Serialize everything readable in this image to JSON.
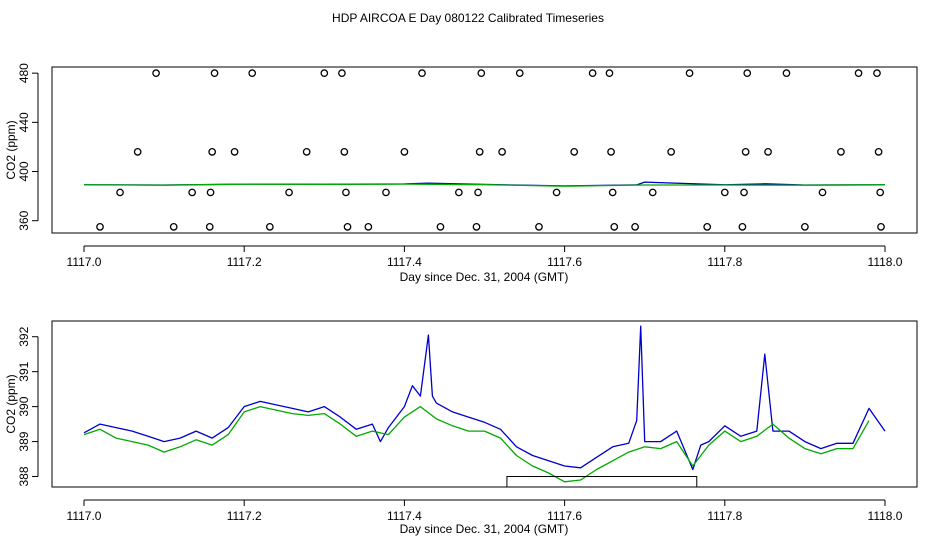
{
  "title": "HDP AIRCOA E  Day 080122  Calibrated Timeseries",
  "chart_data": [
    {
      "type": "scatter",
      "xlabel": "Day since Dec. 31, 2004 (GMT)",
      "ylabel": "CO2 (ppm)",
      "xlim": [
        1117.0,
        1118.0
      ],
      "ylim": [
        350,
        485
      ],
      "xticks": [
        "1117.0",
        "1117.2",
        "1117.4",
        "1117.6",
        "1117.8",
        "1118.0"
      ],
      "yticks": [
        "360",
        "400",
        "440",
        "480"
      ],
      "grid": false,
      "series": [
        {
          "kind": "points",
          "color": "#000000",
          "points": [
            [
              1117.02,
              355
            ],
            [
              1117.045,
              383
            ],
            [
              1117.067,
              416
            ],
            [
              1117.09,
              480
            ],
            [
              1117.112,
              355
            ],
            [
              1117.135,
              383
            ],
            [
              1117.157,
              355
            ],
            [
              1117.158,
              383
            ],
            [
              1117.16,
              416
            ],
            [
              1117.163,
              480
            ],
            [
              1117.188,
              416
            ],
            [
              1117.21,
              480
            ],
            [
              1117.232,
              355
            ],
            [
              1117.256,
              383
            ],
            [
              1117.278,
              416
            ],
            [
              1117.3,
              480
            ],
            [
              1117.322,
              480
            ],
            [
              1117.325,
              416
            ],
            [
              1117.327,
              383
            ],
            [
              1117.329,
              355
            ],
            [
              1117.355,
              355
            ],
            [
              1117.377,
              383
            ],
            [
              1117.4,
              416
            ],
            [
              1117.422,
              480
            ],
            [
              1117.445,
              355
            ],
            [
              1117.468,
              383
            ],
            [
              1117.49,
              355
            ],
            [
              1117.492,
              383
            ],
            [
              1117.494,
              416
            ],
            [
              1117.496,
              480
            ],
            [
              1117.522,
              416
            ],
            [
              1117.544,
              480
            ],
            [
              1117.568,
              355
            ],
            [
              1117.59,
              383
            ],
            [
              1117.612,
              416
            ],
            [
              1117.635,
              480
            ],
            [
              1117.656,
              480
            ],
            [
              1117.658,
              416
            ],
            [
              1117.66,
              383
            ],
            [
              1117.662,
              355
            ],
            [
              1117.688,
              355
            ],
            [
              1117.71,
              383
            ],
            [
              1117.733,
              416
            ],
            [
              1117.756,
              480
            ],
            [
              1117.778,
              355
            ],
            [
              1117.8,
              383
            ],
            [
              1117.822,
              355
            ],
            [
              1117.824,
              383
            ],
            [
              1117.826,
              416
            ],
            [
              1117.828,
              480
            ],
            [
              1117.854,
              416
            ],
            [
              1117.877,
              480
            ],
            [
              1117.9,
              355
            ],
            [
              1117.922,
              383
            ],
            [
              1117.945,
              416
            ],
            [
              1117.967,
              480
            ],
            [
              1117.99,
              480
            ],
            [
              1117.992,
              416
            ],
            [
              1117.994,
              383
            ],
            [
              1117.995,
              355
            ]
          ]
        },
        {
          "kind": "line",
          "color": "#0000cc",
          "x": [
            1117.0,
            1117.1,
            1117.2,
            1117.3,
            1117.4,
            1117.43,
            1117.5,
            1117.6,
            1117.69,
            1117.7,
            1117.8,
            1117.85,
            1117.9,
            1118.0
          ],
          "y": [
            389.2,
            389.0,
            389.8,
            389.6,
            389.9,
            390.6,
            389.5,
            388.3,
            389.1,
            391.4,
            389.2,
            390.0,
            389.0,
            389.2
          ]
        },
        {
          "kind": "line",
          "color": "#00aa00",
          "x": [
            1117.0,
            1117.1,
            1117.2,
            1117.3,
            1117.4,
            1117.5,
            1117.6,
            1117.7,
            1117.8,
            1117.9,
            1118.0
          ],
          "y": [
            389.2,
            388.9,
            389.7,
            389.5,
            389.8,
            389.3,
            388.1,
            389.0,
            389.0,
            388.9,
            389.2
          ]
        }
      ]
    },
    {
      "type": "line",
      "xlabel": "Day since Dec. 31, 2004 (GMT)",
      "ylabel": "CO2 (ppm)",
      "xlim": [
        1117.0,
        1118.0
      ],
      "ylim": [
        387.7,
        392.45
      ],
      "xticks": [
        "1117.0",
        "1117.2",
        "1117.4",
        "1117.6",
        "1117.8",
        "1118.0"
      ],
      "yticks": [
        "388",
        "389",
        "390",
        "391",
        "392"
      ],
      "grid": false,
      "series": [
        {
          "color": "#0000cc",
          "x": [
            1117.0,
            1117.02,
            1117.04,
            1117.06,
            1117.08,
            1117.1,
            1117.12,
            1117.14,
            1117.16,
            1117.18,
            1117.2,
            1117.22,
            1117.24,
            1117.26,
            1117.28,
            1117.3,
            1117.32,
            1117.34,
            1117.36,
            1117.37,
            1117.38,
            1117.4,
            1117.41,
            1117.42,
            1117.43,
            1117.435,
            1117.44,
            1117.46,
            1117.48,
            1117.5,
            1117.52,
            1117.54,
            1117.56,
            1117.58,
            1117.6,
            1117.62,
            1117.64,
            1117.66,
            1117.68,
            1117.69,
            1117.695,
            1117.7,
            1117.72,
            1117.74,
            1117.76,
            1117.77,
            1117.78,
            1117.8,
            1117.82,
            1117.84,
            1117.85,
            1117.86,
            1117.88,
            1117.9,
            1117.92,
            1117.94,
            1117.96,
            1117.98,
            1118.0
          ],
          "y": [
            389.25,
            389.5,
            389.4,
            389.3,
            389.15,
            389.0,
            389.1,
            389.3,
            389.1,
            389.4,
            390.0,
            390.15,
            390.05,
            389.95,
            389.85,
            390.0,
            389.7,
            389.35,
            389.5,
            389.0,
            389.4,
            390.0,
            390.6,
            390.3,
            392.05,
            390.3,
            390.1,
            389.85,
            389.7,
            389.55,
            389.35,
            388.85,
            388.6,
            388.45,
            388.3,
            388.25,
            388.55,
            388.85,
            388.95,
            389.6,
            392.3,
            389.0,
            389.0,
            389.3,
            388.2,
            388.9,
            389.0,
            389.45,
            389.15,
            389.3,
            391.5,
            389.3,
            389.3,
            389.0,
            388.8,
            388.95,
            388.95,
            389.95,
            389.3
          ]
        },
        {
          "color": "#00aa00",
          "x": [
            1117.0,
            1117.02,
            1117.04,
            1117.06,
            1117.08,
            1117.1,
            1117.12,
            1117.14,
            1117.16,
            1117.18,
            1117.2,
            1117.22,
            1117.24,
            1117.26,
            1117.28,
            1117.3,
            1117.32,
            1117.34,
            1117.36,
            1117.38,
            1117.4,
            1117.42,
            1117.44,
            1117.46,
            1117.48,
            1117.5,
            1117.52,
            1117.54,
            1117.56,
            1117.58,
            1117.6,
            1117.62,
            1117.64,
            1117.66,
            1117.68,
            1117.7,
            1117.72,
            1117.74,
            1117.76,
            1117.78,
            1117.8,
            1117.82,
            1117.84,
            1117.86,
            1117.88,
            1117.9,
            1117.92,
            1117.94,
            1117.96,
            1117.98
          ],
          "y": [
            389.2,
            389.35,
            389.1,
            389.0,
            388.9,
            388.7,
            388.85,
            389.05,
            388.9,
            389.2,
            389.85,
            390.0,
            389.9,
            389.8,
            389.75,
            389.8,
            389.5,
            389.15,
            389.3,
            389.2,
            389.7,
            390.0,
            389.65,
            389.45,
            389.3,
            389.3,
            389.1,
            388.6,
            388.3,
            388.1,
            387.85,
            387.9,
            388.2,
            388.45,
            388.7,
            388.85,
            388.8,
            389.0,
            388.3,
            388.9,
            389.3,
            389.0,
            389.15,
            389.5,
            389.1,
            388.8,
            388.65,
            388.8,
            388.8,
            389.6
          ]
        }
      ],
      "annotations": [
        {
          "type": "rect",
          "x0": 1117.528,
          "x1": 1117.765,
          "y0": 387.7,
          "y1": 388.0
        }
      ]
    }
  ]
}
